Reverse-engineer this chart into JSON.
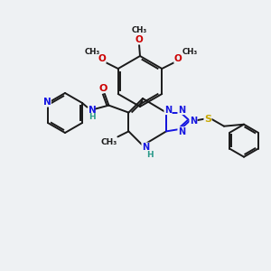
{
  "background_color": "#eef1f3",
  "bond_color": "#1a1a1a",
  "N_color": "#1414e0",
  "O_color": "#cc0000",
  "S_color": "#c8a800",
  "H_color": "#2a9a8a",
  "figsize": [
    3.0,
    3.0
  ],
  "dpi": 100,
  "xlim": [
    0,
    300
  ],
  "ylim": [
    0,
    300
  ]
}
